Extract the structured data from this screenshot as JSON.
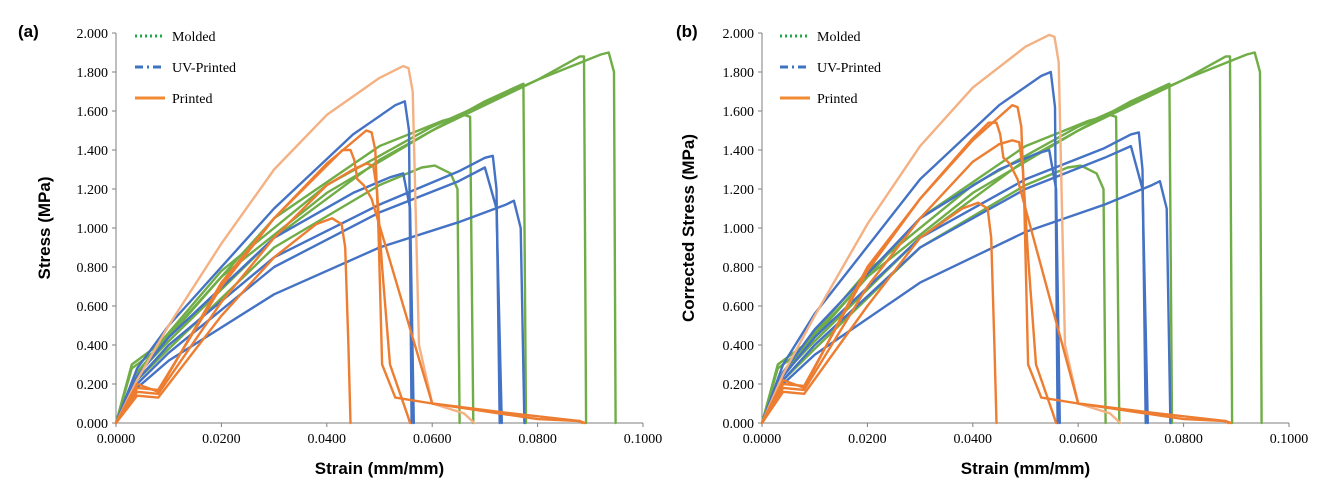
{
  "chart_data": [
    {
      "type": "line",
      "panel_label": "(a)",
      "xlabel": "Strain (mm/mm)",
      "ylabel": "Stress (MPa)",
      "xlim": [
        0,
        0.1
      ],
      "ylim": [
        0,
        2.0
      ],
      "x_ticks": [
        "0.0000",
        "0.0200",
        "0.0400",
        "0.0600",
        "0.0800",
        "0.1000"
      ],
      "y_ticks": [
        "0.000",
        "0.200",
        "0.400",
        "0.600",
        "0.800",
        "1.000",
        "1.200",
        "1.400",
        "1.600",
        "1.800",
        "2.000"
      ],
      "grid": false,
      "legend_position": "top-left",
      "legend": [
        {
          "name": "Molded",
          "color": "#21a848",
          "dash": "dotted"
        },
        {
          "name": "UV-Printed",
          "color": "#3d74c2",
          "dash": "dashdot"
        },
        {
          "name": "Printed",
          "color": "#f28a33",
          "dash": "solid"
        }
      ],
      "series": [
        {
          "group": "Molded",
          "color": "#70ad47",
          "x": [
            0,
            0.003,
            0.008,
            0.02,
            0.04,
            0.06,
            0.08,
            0.092,
            0.0935,
            0.0945,
            0.0948
          ],
          "y": [
            0,
            0.3,
            0.4,
            0.78,
            1.22,
            1.52,
            1.76,
            1.89,
            1.9,
            1.8,
            0
          ]
        },
        {
          "group": "Molded",
          "color": "#70ad47",
          "x": [
            0,
            0.003,
            0.008,
            0.02,
            0.04,
            0.06,
            0.08,
            0.088,
            0.0888,
            0.0892
          ],
          "y": [
            0,
            0.28,
            0.38,
            0.75,
            1.18,
            1.5,
            1.76,
            1.88,
            1.88,
            0
          ]
        },
        {
          "group": "Molded",
          "color": "#70ad47",
          "x": [
            0,
            0.004,
            0.01,
            0.03,
            0.05,
            0.07,
            0.0773,
            0.0778
          ],
          "y": [
            0,
            0.25,
            0.42,
            0.95,
            1.35,
            1.65,
            1.74,
            0
          ]
        },
        {
          "group": "Molded",
          "color": "#70ad47",
          "x": [
            0,
            0.004,
            0.01,
            0.03,
            0.05,
            0.062,
            0.066,
            0.0672,
            0.0678
          ],
          "y": [
            0,
            0.26,
            0.45,
            1.05,
            1.42,
            1.55,
            1.58,
            1.57,
            0
          ]
        },
        {
          "group": "Molded",
          "color": "#70ad47",
          "x": [
            0,
            0.004,
            0.01,
            0.03,
            0.05,
            0.058,
            0.0605,
            0.0635,
            0.0648,
            0.0652
          ],
          "y": [
            0,
            0.22,
            0.38,
            0.9,
            1.22,
            1.31,
            1.32,
            1.28,
            1.2,
            0
          ]
        },
        {
          "group": "UV-Printed",
          "color": "#4472c4",
          "x": [
            0,
            0.004,
            0.01,
            0.03,
            0.045,
            0.053,
            0.0548,
            0.0556,
            0.0561
          ],
          "y": [
            0,
            0.28,
            0.5,
            1.1,
            1.48,
            1.63,
            1.65,
            1.5,
            0
          ]
        },
        {
          "group": "UV-Printed",
          "color": "#4472c4",
          "x": [
            0,
            0.004,
            0.01,
            0.03,
            0.05,
            0.065,
            0.07,
            0.0715,
            0.0722,
            0.0728
          ],
          "y": [
            0,
            0.22,
            0.4,
            0.85,
            1.12,
            1.29,
            1.36,
            1.37,
            1.2,
            0
          ]
        },
        {
          "group": "UV-Printed",
          "color": "#4472c4",
          "x": [
            0,
            0.004,
            0.01,
            0.03,
            0.05,
            0.065,
            0.07,
            0.0722,
            0.0732
          ],
          "y": [
            0,
            0.2,
            0.36,
            0.8,
            1.08,
            1.24,
            1.31,
            1.1,
            0
          ]
        },
        {
          "group": "UV-Printed",
          "color": "#4472c4",
          "x": [
            0,
            0.004,
            0.01,
            0.03,
            0.05,
            0.065,
            0.074,
            0.0755,
            0.0768,
            0.0775
          ],
          "y": [
            0,
            0.18,
            0.32,
            0.66,
            0.9,
            1.03,
            1.12,
            1.14,
            1.0,
            0
          ]
        },
        {
          "group": "UV-Printed",
          "color": "#4472c4",
          "x": [
            0,
            0.004,
            0.01,
            0.03,
            0.045,
            0.052,
            0.0545,
            0.0558,
            0.0565
          ],
          "y": [
            0,
            0.24,
            0.44,
            0.95,
            1.18,
            1.26,
            1.28,
            1.1,
            0
          ]
        },
        {
          "group": "Printed",
          "color": "#f4b183",
          "x": [
            0,
            0.004,
            0.01,
            0.02,
            0.03,
            0.04,
            0.05,
            0.0545,
            0.0555,
            0.0563,
            0.0575,
            0.06,
            0.066,
            0.068
          ],
          "y": [
            0,
            0.22,
            0.5,
            0.92,
            1.3,
            1.58,
            1.77,
            1.83,
            1.82,
            1.7,
            0.4,
            0.1,
            0.05,
            0
          ]
        },
        {
          "group": "Printed",
          "color": "#ed7d31",
          "x": [
            0,
            0.004,
            0.008,
            0.02,
            0.03,
            0.04,
            0.0475,
            0.0485,
            0.0492,
            0.0498,
            0.0505,
            0.053,
            0.06,
            0.07,
            0.08,
            0.088,
            0.0885
          ],
          "y": [
            0,
            0.18,
            0.17,
            0.7,
            1.05,
            1.33,
            1.5,
            1.49,
            1.4,
            1.0,
            0.3,
            0.13,
            0.1,
            0.06,
            0.02,
            0.01,
            0
          ]
        },
        {
          "group": "Printed",
          "color": "#ed7d31",
          "x": [
            0,
            0.004,
            0.008,
            0.02,
            0.03,
            0.04,
            0.043,
            0.0445,
            0.0452,
            0.0458,
            0.047,
            0.0485,
            0.06,
            0.075,
            0.088,
            0.089
          ],
          "y": [
            0,
            0.2,
            0.16,
            0.72,
            1.05,
            1.32,
            1.4,
            1.4,
            1.35,
            1.25,
            1.22,
            1.15,
            0.1,
            0.05,
            0.01,
            0
          ]
        },
        {
          "group": "Printed",
          "color": "#ed7d31",
          "x": [
            0,
            0.004,
            0.008,
            0.02,
            0.03,
            0.04,
            0.045,
            0.0475,
            0.0488,
            0.0495,
            0.0505,
            0.052,
            0.0552,
            0.0558
          ],
          "y": [
            0,
            0.16,
            0.15,
            0.62,
            0.95,
            1.22,
            1.3,
            1.33,
            1.32,
            1.2,
            0.8,
            0.3,
            0.05,
            0
          ]
        },
        {
          "group": "Printed",
          "color": "#ed7d31",
          "x": [
            0,
            0.004,
            0.008,
            0.02,
            0.03,
            0.038,
            0.041,
            0.0428,
            0.0435,
            0.0441,
            0.0445
          ],
          "y": [
            0,
            0.14,
            0.13,
            0.55,
            0.85,
            1.02,
            1.05,
            1.02,
            0.9,
            0.4,
            0
          ]
        }
      ]
    },
    {
      "type": "line",
      "panel_label": "(b)",
      "xlabel": "Strain (mm/mm)",
      "ylabel": "Corrected Stress (MPa)",
      "xlim": [
        0,
        0.1
      ],
      "ylim": [
        0,
        2.0
      ],
      "x_ticks": [
        "0.0000",
        "0.0200",
        "0.0400",
        "0.0600",
        "0.0800",
        "0.1000"
      ],
      "y_ticks": [
        "0.000",
        "0.200",
        "0.400",
        "0.600",
        "0.800",
        "1.000",
        "1.200",
        "1.400",
        "1.600",
        "1.800",
        "2.000"
      ],
      "grid": false,
      "legend_position": "top-left",
      "legend": [
        {
          "name": "Molded",
          "color": "#21a848",
          "dash": "dotted"
        },
        {
          "name": "UV-Printed",
          "color": "#3d74c2",
          "dash": "dashdot"
        },
        {
          "name": "Printed",
          "color": "#f28a33",
          "dash": "solid"
        }
      ],
      "series": [
        {
          "group": "Molded",
          "color": "#70ad47",
          "x": [
            0,
            0.003,
            0.008,
            0.02,
            0.04,
            0.06,
            0.08,
            0.092,
            0.0935,
            0.0945,
            0.0948
          ],
          "y": [
            0,
            0.3,
            0.4,
            0.78,
            1.22,
            1.52,
            1.76,
            1.89,
            1.9,
            1.8,
            0
          ]
        },
        {
          "group": "Molded",
          "color": "#70ad47",
          "x": [
            0,
            0.003,
            0.008,
            0.02,
            0.04,
            0.06,
            0.08,
            0.088,
            0.0888,
            0.0892
          ],
          "y": [
            0,
            0.28,
            0.38,
            0.75,
            1.18,
            1.5,
            1.76,
            1.88,
            1.88,
            0
          ]
        },
        {
          "group": "Molded",
          "color": "#70ad47",
          "x": [
            0,
            0.004,
            0.01,
            0.03,
            0.05,
            0.07,
            0.0773,
            0.0778
          ],
          "y": [
            0,
            0.25,
            0.42,
            0.95,
            1.35,
            1.65,
            1.74,
            0
          ]
        },
        {
          "group": "Molded",
          "color": "#70ad47",
          "x": [
            0,
            0.004,
            0.01,
            0.03,
            0.05,
            0.062,
            0.066,
            0.0672,
            0.0678
          ],
          "y": [
            0,
            0.26,
            0.45,
            1.05,
            1.42,
            1.55,
            1.58,
            1.57,
            0
          ]
        },
        {
          "group": "Molded",
          "color": "#70ad47",
          "x": [
            0,
            0.004,
            0.01,
            0.03,
            0.05,
            0.058,
            0.0605,
            0.0635,
            0.0648,
            0.0652
          ],
          "y": [
            0,
            0.22,
            0.38,
            0.9,
            1.22,
            1.31,
            1.32,
            1.28,
            1.2,
            0
          ]
        },
        {
          "group": "UV-Printed",
          "color": "#4472c4",
          "x": [
            0,
            0.004,
            0.01,
            0.03,
            0.045,
            0.053,
            0.0548,
            0.0556,
            0.0561
          ],
          "y": [
            0,
            0.3,
            0.56,
            1.25,
            1.63,
            1.78,
            1.8,
            1.62,
            0
          ]
        },
        {
          "group": "UV-Printed",
          "color": "#4472c4",
          "x": [
            0,
            0.004,
            0.01,
            0.03,
            0.05,
            0.065,
            0.07,
            0.0715,
            0.0722,
            0.0728
          ],
          "y": [
            0,
            0.24,
            0.44,
            0.95,
            1.25,
            1.41,
            1.48,
            1.49,
            1.3,
            0
          ]
        },
        {
          "group": "UV-Printed",
          "color": "#4472c4",
          "x": [
            0,
            0.004,
            0.01,
            0.03,
            0.05,
            0.065,
            0.07,
            0.0722,
            0.0732
          ],
          "y": [
            0,
            0.22,
            0.4,
            0.9,
            1.2,
            1.36,
            1.42,
            1.2,
            0
          ]
        },
        {
          "group": "UV-Printed",
          "color": "#4472c4",
          "x": [
            0,
            0.004,
            0.01,
            0.03,
            0.05,
            0.065,
            0.074,
            0.0755,
            0.0768,
            0.0775
          ],
          "y": [
            0,
            0.2,
            0.35,
            0.72,
            0.98,
            1.12,
            1.22,
            1.24,
            1.1,
            0
          ]
        },
        {
          "group": "UV-Printed",
          "color": "#4472c4",
          "x": [
            0,
            0.004,
            0.01,
            0.03,
            0.045,
            0.052,
            0.0545,
            0.0558,
            0.0565
          ],
          "y": [
            0,
            0.26,
            0.48,
            1.05,
            1.3,
            1.38,
            1.4,
            1.2,
            0
          ]
        },
        {
          "group": "Printed",
          "color": "#f4b183",
          "x": [
            0,
            0.004,
            0.01,
            0.02,
            0.03,
            0.04,
            0.05,
            0.0545,
            0.0555,
            0.0563,
            0.0575,
            0.06,
            0.066,
            0.068
          ],
          "y": [
            0,
            0.25,
            0.55,
            1.02,
            1.42,
            1.72,
            1.93,
            1.99,
            1.98,
            1.85,
            0.4,
            0.1,
            0.05,
            0
          ]
        },
        {
          "group": "Printed",
          "color": "#ed7d31",
          "x": [
            0,
            0.004,
            0.008,
            0.02,
            0.03,
            0.04,
            0.0475,
            0.0485,
            0.0492,
            0.0498,
            0.0505,
            0.053,
            0.06,
            0.07,
            0.08,
            0.088,
            0.0885
          ],
          "y": [
            0,
            0.2,
            0.19,
            0.78,
            1.15,
            1.45,
            1.63,
            1.62,
            1.52,
            1.1,
            0.3,
            0.13,
            0.1,
            0.06,
            0.02,
            0.01,
            0
          ]
        },
        {
          "group": "Printed",
          "color": "#ed7d31",
          "x": [
            0,
            0.004,
            0.008,
            0.02,
            0.03,
            0.04,
            0.043,
            0.0445,
            0.0452,
            0.0458,
            0.047,
            0.0485,
            0.06,
            0.075,
            0.088,
            0.089
          ],
          "y": [
            0,
            0.22,
            0.18,
            0.8,
            1.15,
            1.46,
            1.54,
            1.54,
            1.48,
            1.36,
            1.33,
            1.25,
            0.1,
            0.05,
            0.01,
            0
          ]
        },
        {
          "group": "Printed",
          "color": "#ed7d31",
          "x": [
            0,
            0.004,
            0.008,
            0.02,
            0.03,
            0.04,
            0.045,
            0.0475,
            0.0488,
            0.0495,
            0.0505,
            0.052,
            0.0552,
            0.0558
          ],
          "y": [
            0,
            0.18,
            0.17,
            0.7,
            1.05,
            1.34,
            1.43,
            1.45,
            1.44,
            1.3,
            0.85,
            0.3,
            0.05,
            0
          ]
        },
        {
          "group": "Printed",
          "color": "#ed7d31",
          "x": [
            0,
            0.004,
            0.008,
            0.02,
            0.03,
            0.038,
            0.041,
            0.0428,
            0.0435,
            0.0441,
            0.0445
          ],
          "y": [
            0,
            0.16,
            0.15,
            0.6,
            0.95,
            1.1,
            1.13,
            1.1,
            0.95,
            0.4,
            0
          ]
        }
      ]
    }
  ]
}
